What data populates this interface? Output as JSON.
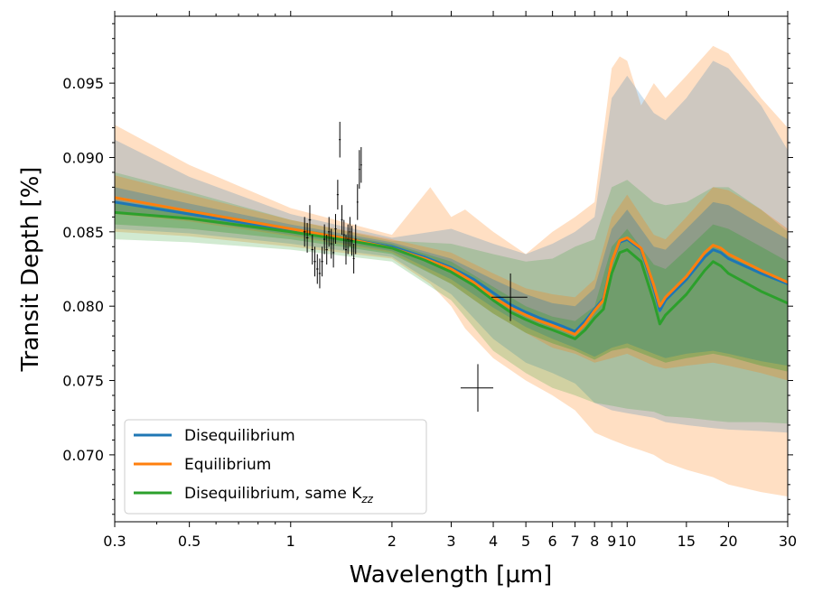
{
  "chart_data": {
    "type": "line",
    "xscale": "log",
    "xlabel": "Wavelength [µm]",
    "ylabel": "Transit Depth [%]",
    "xlim": [
      0.3,
      30
    ],
    "ylim": [
      0.0655,
      0.0995
    ],
    "xticks": [
      {
        "v": 0.3,
        "label": "0.3"
      },
      {
        "v": 0.5,
        "label": "0.5"
      },
      {
        "v": 1,
        "label": "1"
      },
      {
        "v": 2,
        "label": "2"
      },
      {
        "v": 3,
        "label": "3"
      },
      {
        "v": 4,
        "label": "4"
      },
      {
        "v": 5,
        "label": "5"
      },
      {
        "v": 6,
        "label": "6"
      },
      {
        "v": 7,
        "label": "7"
      },
      {
        "v": 8,
        "label": "8"
      },
      {
        "v": 9,
        "label": "9"
      },
      {
        "v": 10,
        "label": "10"
      },
      {
        "v": 15,
        "label": "15"
      },
      {
        "v": 20,
        "label": "20"
      },
      {
        "v": 30,
        "label": "30"
      }
    ],
    "yticks": [
      {
        "v": 0.07,
        "label": "0.070"
      },
      {
        "v": 0.075,
        "label": "0.075"
      },
      {
        "v": 0.08,
        "label": "0.080"
      },
      {
        "v": 0.085,
        "label": "0.085"
      },
      {
        "v": 0.09,
        "label": "0.090"
      },
      {
        "v": 0.095,
        "label": "0.095"
      }
    ],
    "legend_position": "lower-left",
    "series": [
      {
        "name": "Disequilibrium",
        "color": "#1f77b4",
        "x": [
          0.3,
          0.5,
          1.0,
          1.5,
          2.0,
          2.5,
          3.0,
          3.5,
          4.0,
          4.5,
          5.0,
          5.5,
          6.0,
          6.5,
          7.0,
          7.5,
          8.0,
          8.5,
          9.0,
          9.5,
          10.0,
          11.0,
          12.0,
          12.5,
          13.0,
          15.0,
          17.0,
          18.0,
          19.0,
          20.0,
          25.0,
          30.0
        ],
        "y": [
          0.087,
          0.0862,
          0.0851,
          0.0845,
          0.084,
          0.0833,
          0.0826,
          0.0818,
          0.0809,
          0.0801,
          0.0796,
          0.0792,
          0.0789,
          0.0786,
          0.0783,
          0.079,
          0.0798,
          0.0805,
          0.083,
          0.0843,
          0.0845,
          0.0838,
          0.0812,
          0.0797,
          0.0804,
          0.0818,
          0.0833,
          0.0838,
          0.0836,
          0.0832,
          0.0822,
          0.0815
        ]
      },
      {
        "name": "Equilibrium",
        "color": "#ff7f0e",
        "x": [
          0.3,
          0.5,
          1.0,
          1.5,
          2.0,
          2.5,
          3.0,
          3.5,
          4.0,
          4.5,
          5.0,
          5.5,
          6.0,
          6.5,
          7.0,
          7.5,
          8.0,
          8.5,
          9.0,
          9.5,
          10.0,
          11.0,
          12.0,
          12.5,
          13.0,
          15.0,
          17.0,
          18.0,
          19.0,
          20.0,
          25.0,
          30.0
        ],
        "y": [
          0.0873,
          0.0864,
          0.0852,
          0.0845,
          0.0839,
          0.0832,
          0.0825,
          0.0816,
          0.0806,
          0.0799,
          0.0794,
          0.079,
          0.0787,
          0.0784,
          0.0781,
          0.0788,
          0.0797,
          0.0804,
          0.083,
          0.0844,
          0.0846,
          0.0839,
          0.0814,
          0.08,
          0.0806,
          0.082,
          0.0836,
          0.0841,
          0.0839,
          0.0835,
          0.0824,
          0.0816
        ]
      },
      {
        "name": "Disequilibrium, same K_zz",
        "color": "#2ca02c",
        "x": [
          0.3,
          0.5,
          1.0,
          1.5,
          2.0,
          2.5,
          3.0,
          3.5,
          4.0,
          4.5,
          5.0,
          5.5,
          6.0,
          6.5,
          7.0,
          7.5,
          8.0,
          8.5,
          9.0,
          9.5,
          10.0,
          11.0,
          12.0,
          12.5,
          13.0,
          15.0,
          17.0,
          18.0,
          19.0,
          20.0,
          25.0,
          30.0
        ],
        "y": [
          0.0863,
          0.0859,
          0.085,
          0.0844,
          0.0839,
          0.0831,
          0.0823,
          0.0814,
          0.0804,
          0.0796,
          0.0791,
          0.0787,
          0.0784,
          0.0781,
          0.0778,
          0.0784,
          0.0792,
          0.0798,
          0.0822,
          0.0836,
          0.0838,
          0.083,
          0.0803,
          0.0788,
          0.0794,
          0.0808,
          0.0824,
          0.083,
          0.0827,
          0.0822,
          0.081,
          0.0802
        ]
      }
    ],
    "bands": [
      {
        "series": "Equilibrium",
        "level": "outer",
        "color": "#ff7f0e",
        "opacity": 0.25,
        "x": [
          0.3,
          0.5,
          1.0,
          2.0,
          2.6,
          3.0,
          3.3,
          4.0,
          5.0,
          6.0,
          7.0,
          8.0,
          9.0,
          9.5,
          10.0,
          11.0,
          12.0,
          13.0,
          15.0,
          18.0,
          20.0,
          25.0,
          30.0
        ],
        "lo": [
          0.085,
          0.0847,
          0.084,
          0.0832,
          0.0815,
          0.08,
          0.0785,
          0.0765,
          0.075,
          0.074,
          0.073,
          0.0715,
          0.071,
          0.0708,
          0.0706,
          0.0703,
          0.07,
          0.0695,
          0.069,
          0.0685,
          0.068,
          0.0675,
          0.0672
        ],
        "hi": [
          0.0922,
          0.0895,
          0.0866,
          0.0848,
          0.088,
          0.086,
          0.0865,
          0.085,
          0.0835,
          0.085,
          0.086,
          0.087,
          0.096,
          0.0968,
          0.0965,
          0.0935,
          0.095,
          0.094,
          0.0955,
          0.0975,
          0.097,
          0.094,
          0.092
        ]
      },
      {
        "series": "Disequilibrium",
        "level": "outer",
        "color": "#1f77b4",
        "opacity": 0.22,
        "x": [
          0.3,
          0.5,
          1.0,
          2.0,
          3.0,
          4.0,
          5.0,
          6.0,
          7.0,
          8.0,
          9.0,
          10.0,
          12.0,
          13.0,
          15.0,
          18.0,
          20.0,
          25.0,
          30.0
        ],
        "lo": [
          0.0852,
          0.0849,
          0.0842,
          0.0833,
          0.0808,
          0.0778,
          0.0762,
          0.0755,
          0.0748,
          0.0735,
          0.073,
          0.0728,
          0.0725,
          0.0722,
          0.072,
          0.0718,
          0.0717,
          0.0716,
          0.0715
        ],
        "hi": [
          0.0912,
          0.0887,
          0.0862,
          0.0846,
          0.0852,
          0.0842,
          0.0835,
          0.0842,
          0.085,
          0.086,
          0.094,
          0.0955,
          0.093,
          0.0925,
          0.094,
          0.0965,
          0.096,
          0.0935,
          0.0905
        ]
      },
      {
        "series": "Disequilibrium, same K_zz",
        "level": "outer",
        "color": "#2ca02c",
        "opacity": 0.22,
        "x": [
          0.3,
          0.5,
          1.0,
          2.0,
          3.0,
          4.0,
          5.0,
          6.0,
          7.0,
          8.0,
          9.0,
          10.0,
          12.0,
          13.0,
          15.0,
          18.0,
          20.0,
          25.0,
          30.0
        ],
        "lo": [
          0.0845,
          0.0843,
          0.0838,
          0.083,
          0.0804,
          0.077,
          0.0755,
          0.0745,
          0.074,
          0.0735,
          0.0733,
          0.0731,
          0.0729,
          0.0726,
          0.0725,
          0.0723,
          0.0722,
          0.0722,
          0.0721
        ],
        "hi": [
          0.089,
          0.0877,
          0.0858,
          0.0844,
          0.0842,
          0.0835,
          0.083,
          0.0832,
          0.084,
          0.0845,
          0.088,
          0.0885,
          0.087,
          0.0868,
          0.087,
          0.088,
          0.088,
          0.0865,
          0.085
        ]
      },
      {
        "series": "Equilibrium",
        "level": "inner",
        "color": "#ff7f0e",
        "opacity": 0.28,
        "x": [
          0.3,
          0.5,
          1.0,
          2.0,
          3.0,
          4.0,
          5.0,
          6.0,
          7.0,
          8.0,
          9.0,
          10.0,
          12.0,
          13.0,
          15.0,
          18.0,
          20.0,
          25.0,
          30.0
        ],
        "lo": [
          0.0862,
          0.0857,
          0.0847,
          0.0836,
          0.0815,
          0.0795,
          0.0782,
          0.0772,
          0.0768,
          0.0762,
          0.0765,
          0.0768,
          0.076,
          0.0758,
          0.076,
          0.0762,
          0.076,
          0.0755,
          0.075
        ],
        "hi": [
          0.0888,
          0.0875,
          0.0858,
          0.0845,
          0.0836,
          0.0822,
          0.0812,
          0.0808,
          0.0806,
          0.0818,
          0.086,
          0.0875,
          0.0848,
          0.0845,
          0.086,
          0.088,
          0.0878,
          0.0865,
          0.0852
        ]
      },
      {
        "series": "Disequilibrium",
        "level": "inner",
        "color": "#1f77b4",
        "opacity": 0.3,
        "x": [
          0.3,
          0.5,
          1.0,
          2.0,
          3.0,
          4.0,
          5.0,
          6.0,
          7.0,
          8.0,
          9.0,
          10.0,
          12.0,
          13.0,
          15.0,
          18.0,
          20.0,
          25.0,
          30.0
        ],
        "lo": [
          0.0863,
          0.0858,
          0.0848,
          0.0837,
          0.0818,
          0.0799,
          0.0786,
          0.0778,
          0.0772,
          0.0766,
          0.0772,
          0.0775,
          0.0768,
          0.0765,
          0.0768,
          0.077,
          0.0768,
          0.0763,
          0.076
        ],
        "hi": [
          0.088,
          0.0869,
          0.0855,
          0.0843,
          0.0832,
          0.0818,
          0.0808,
          0.0802,
          0.08,
          0.0812,
          0.0852,
          0.0865,
          0.084,
          0.0838,
          0.0852,
          0.087,
          0.0868,
          0.0855,
          0.0845
        ]
      },
      {
        "series": "Disequilibrium, same K_zz",
        "level": "inner",
        "color": "#2ca02c",
        "opacity": 0.3,
        "x": [
          0.3,
          0.5,
          1.0,
          2.0,
          3.0,
          4.0,
          5.0,
          6.0,
          7.0,
          8.0,
          9.0,
          10.0,
          12.0,
          13.0,
          15.0,
          18.0,
          20.0,
          25.0,
          30.0
        ],
        "lo": [
          0.0855,
          0.0852,
          0.0845,
          0.0835,
          0.0815,
          0.0795,
          0.0782,
          0.0775,
          0.077,
          0.0764,
          0.077,
          0.0772,
          0.0765,
          0.0762,
          0.0765,
          0.0768,
          0.0766,
          0.076,
          0.0756
        ],
        "hi": [
          0.087,
          0.0865,
          0.0853,
          0.0842,
          0.083,
          0.0813,
          0.08,
          0.0793,
          0.079,
          0.08,
          0.084,
          0.0852,
          0.0828,
          0.0825,
          0.0838,
          0.0855,
          0.0852,
          0.084,
          0.083
        ]
      }
    ],
    "observations": {
      "color": "#000000",
      "points": [
        {
          "x": 1.1,
          "y": 0.085,
          "xerr": 0.009,
          "yerr": 0.001
        },
        {
          "x": 1.12,
          "y": 0.0846,
          "xerr": 0.009,
          "yerr": 0.001
        },
        {
          "x": 1.14,
          "y": 0.0858,
          "xerr": 0.009,
          "yerr": 0.001
        },
        {
          "x": 1.16,
          "y": 0.0838,
          "xerr": 0.009,
          "yerr": 0.001
        },
        {
          "x": 1.18,
          "y": 0.083,
          "xerr": 0.009,
          "yerr": 0.001
        },
        {
          "x": 1.2,
          "y": 0.0825,
          "xerr": 0.009,
          "yerr": 0.001
        },
        {
          "x": 1.22,
          "y": 0.0822,
          "xerr": 0.009,
          "yerr": 0.001
        },
        {
          "x": 1.24,
          "y": 0.083,
          "xerr": 0.009,
          "yerr": 0.001
        },
        {
          "x": 1.26,
          "y": 0.0845,
          "xerr": 0.009,
          "yerr": 0.001
        },
        {
          "x": 1.28,
          "y": 0.0838,
          "xerr": 0.009,
          "yerr": 0.001
        },
        {
          "x": 1.3,
          "y": 0.085,
          "xerr": 0.009,
          "yerr": 0.001
        },
        {
          "x": 1.32,
          "y": 0.0842,
          "xerr": 0.009,
          "yerr": 0.001
        },
        {
          "x": 1.34,
          "y": 0.0836,
          "xerr": 0.009,
          "yerr": 0.001
        },
        {
          "x": 1.36,
          "y": 0.0852,
          "xerr": 0.009,
          "yerr": 0.001
        },
        {
          "x": 1.38,
          "y": 0.0875,
          "xerr": 0.009,
          "yerr": 0.001
        },
        {
          "x": 1.4,
          "y": 0.0912,
          "xerr": 0.009,
          "yerr": 0.0012
        },
        {
          "x": 1.42,
          "y": 0.0858,
          "xerr": 0.009,
          "yerr": 0.001
        },
        {
          "x": 1.44,
          "y": 0.0848,
          "xerr": 0.009,
          "yerr": 0.001
        },
        {
          "x": 1.46,
          "y": 0.0838,
          "xerr": 0.009,
          "yerr": 0.001
        },
        {
          "x": 1.48,
          "y": 0.0845,
          "xerr": 0.009,
          "yerr": 0.001
        },
        {
          "x": 1.5,
          "y": 0.085,
          "xerr": 0.009,
          "yerr": 0.001
        },
        {
          "x": 1.52,
          "y": 0.0844,
          "xerr": 0.009,
          "yerr": 0.001
        },
        {
          "x": 1.54,
          "y": 0.0832,
          "xerr": 0.009,
          "yerr": 0.001
        },
        {
          "x": 1.56,
          "y": 0.0845,
          "xerr": 0.009,
          "yerr": 0.001
        },
        {
          "x": 1.58,
          "y": 0.087,
          "xerr": 0.009,
          "yerr": 0.0012
        },
        {
          "x": 1.6,
          "y": 0.0892,
          "xerr": 0.009,
          "yerr": 0.0013
        },
        {
          "x": 1.62,
          "y": 0.0895,
          "xerr": 0.009,
          "yerr": 0.0012
        },
        {
          "x": 3.6,
          "y": 0.0745,
          "xerr": 0.4,
          "yerr": 0.0016
        },
        {
          "x": 4.5,
          "y": 0.0806,
          "xerr": 0.55,
          "yerr": 0.0016
        }
      ]
    },
    "legend": [
      {
        "label": "Disequilibrium",
        "color": "#1f77b4"
      },
      {
        "label": "Equilibrium",
        "color": "#ff7f0e"
      },
      {
        "label": "Disequilibrium, same K",
        "sub": "zz",
        "color": "#2ca02c"
      }
    ]
  }
}
